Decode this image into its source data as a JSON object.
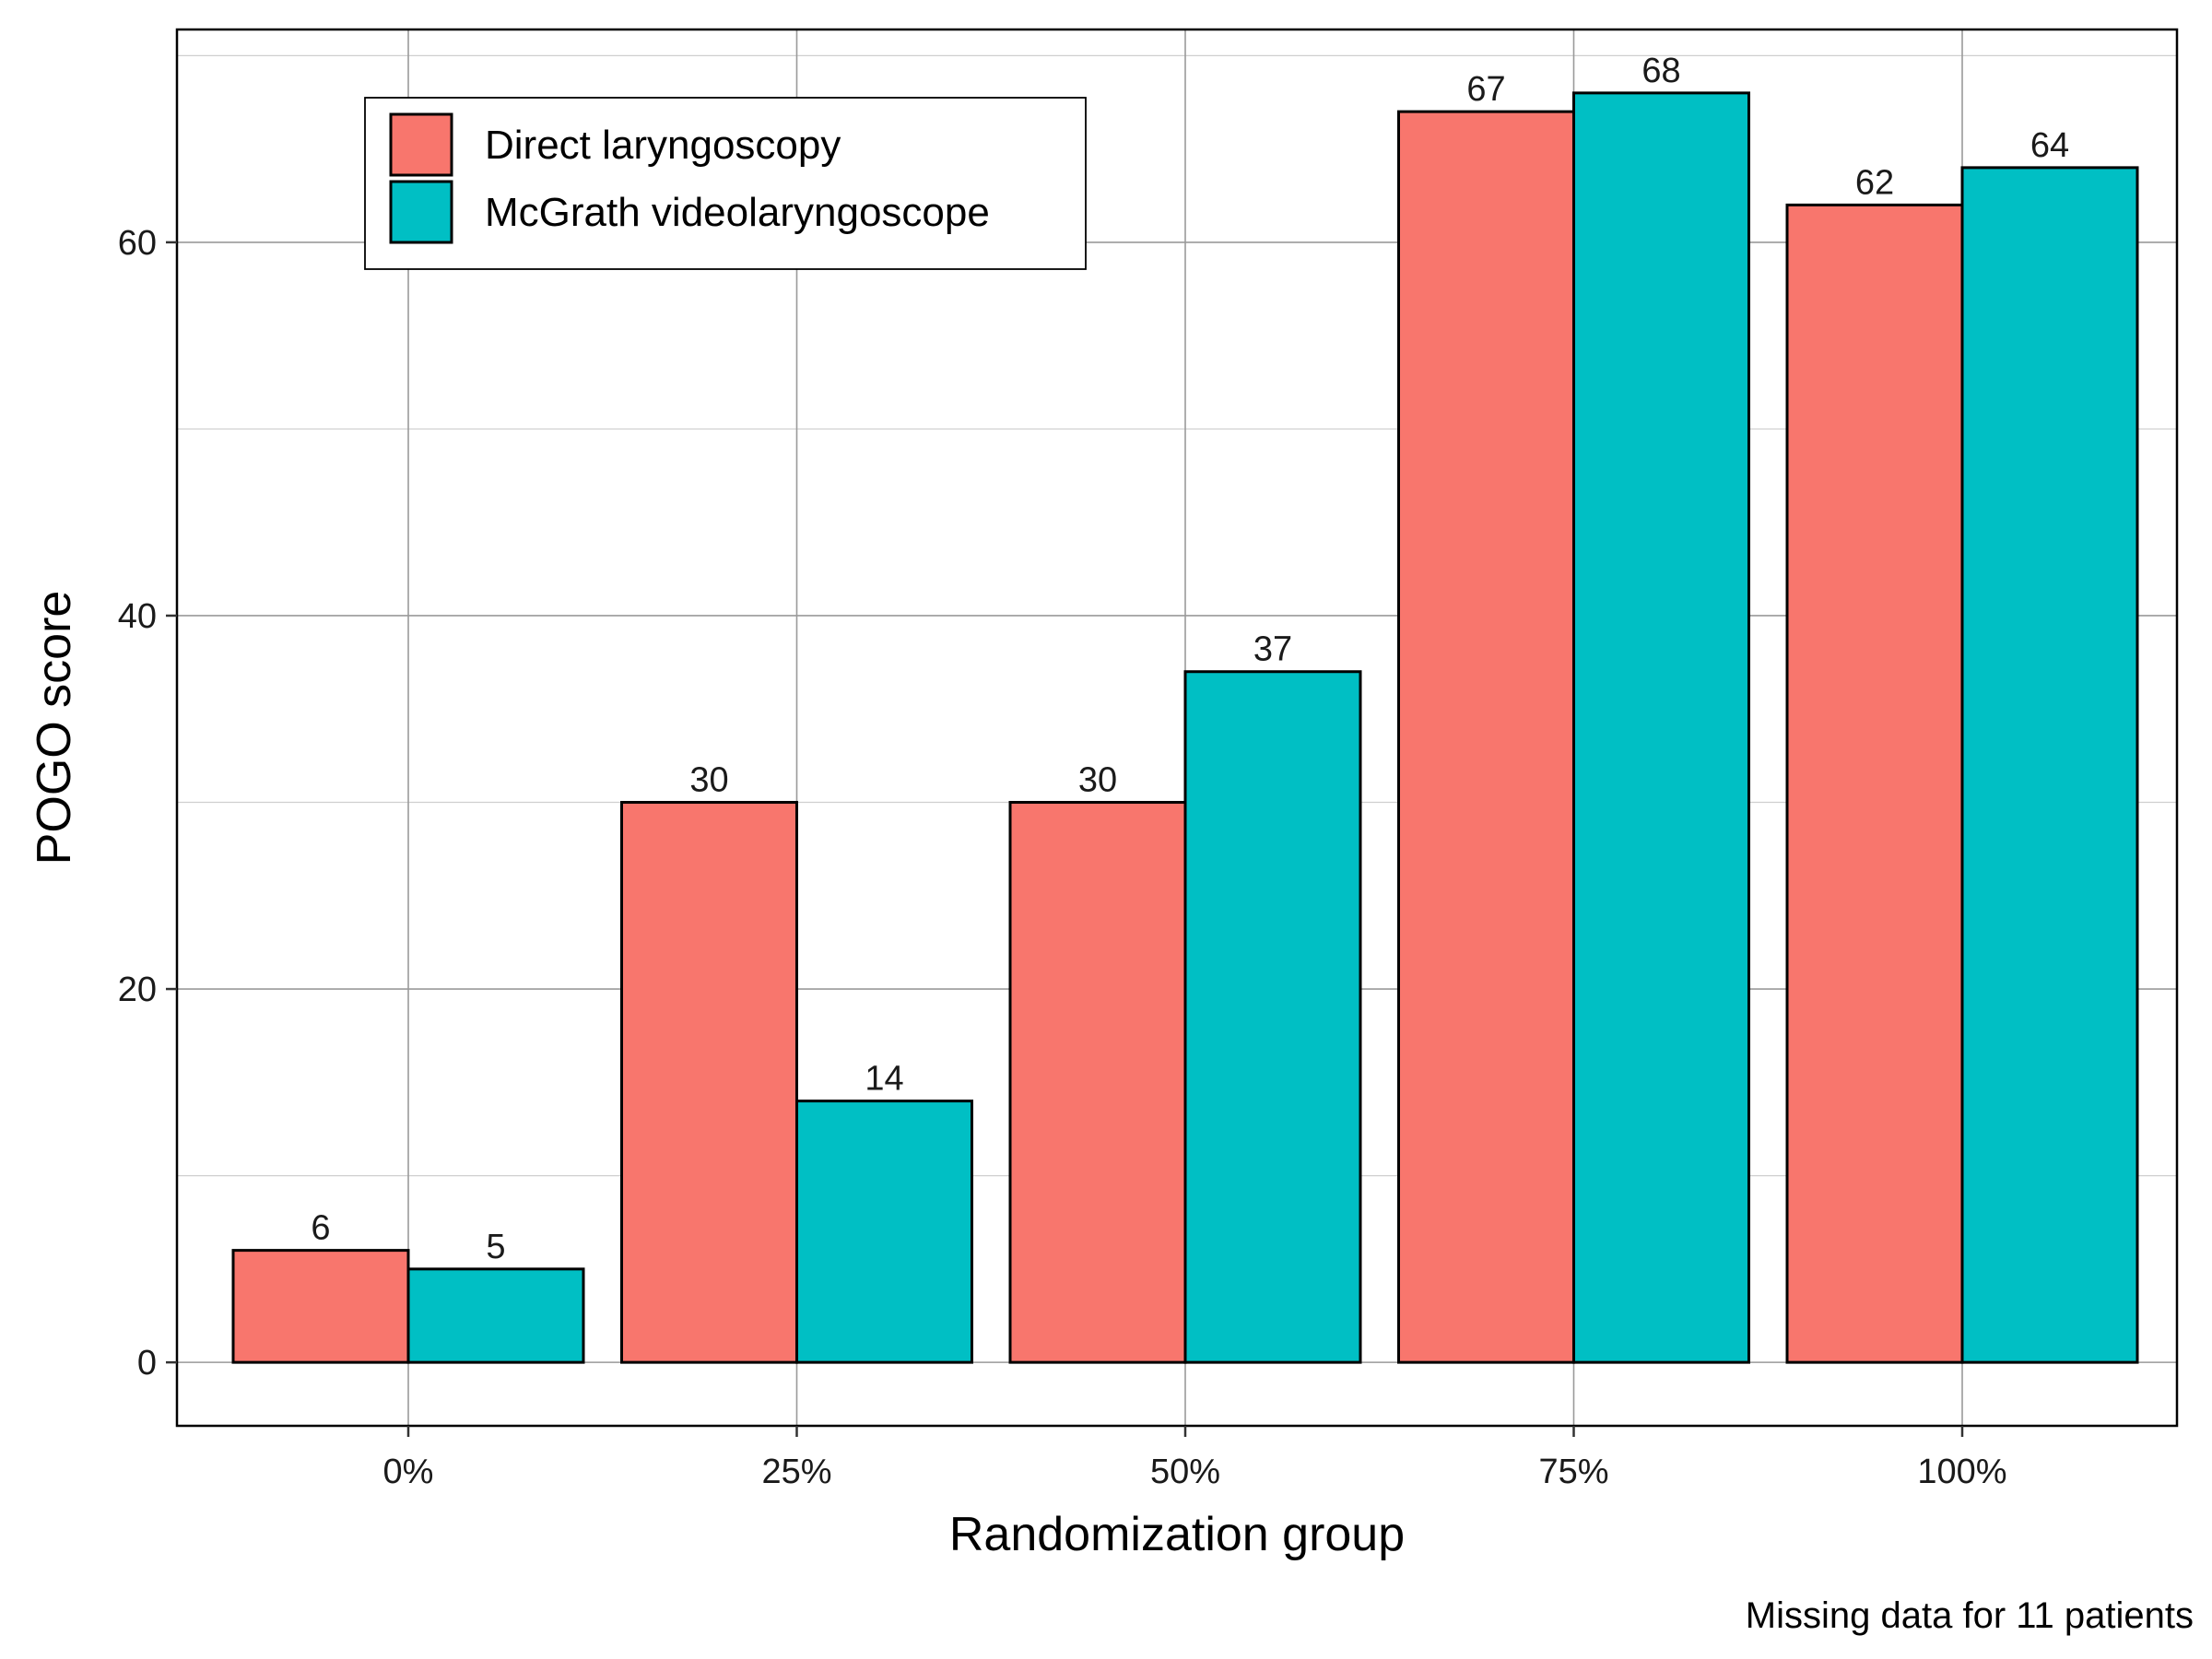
{
  "chart_data": {
    "type": "bar",
    "title": "",
    "xlabel": "Randomization group",
    "ylabel": "POGO score",
    "categories": [
      "0%",
      "25%",
      "50%",
      "75%",
      "100%"
    ],
    "series": [
      {
        "name": "Direct laryngoscopy",
        "values": [
          6,
          30,
          30,
          67,
          62
        ],
        "color": "#F8766D"
      },
      {
        "name": "McGrath videolaryngoscope",
        "values": [
          5,
          14,
          37,
          68,
          64
        ],
        "color": "#00BFC4"
      }
    ],
    "ylim": [
      -3.4,
      71.4
    ],
    "yticks": [
      0,
      20,
      40,
      60
    ],
    "grid": true,
    "legend_position": "top-left",
    "caption": "Missing data for 11 patients"
  }
}
